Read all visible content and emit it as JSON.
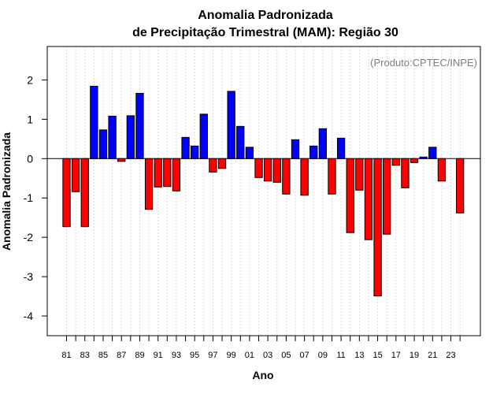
{
  "chart_data": {
    "type": "bar",
    "title": "Anomalia Padronizada",
    "subtitle": "de Precipitação Trimestral (MAM): Região 30",
    "xlabel": "Ano",
    "ylabel": "Anomalia Padronizada",
    "annotation": "(Produto:CPTEC/INPE)",
    "ylim": [
      -4.5,
      2.85
    ],
    "yticks": [
      -4,
      -3,
      -2,
      -1,
      0,
      1,
      2
    ],
    "ytick_labels": [
      "-4",
      "-3",
      "-2",
      "-1",
      "0",
      "1",
      "2"
    ],
    "grid": true,
    "positive_color": "#0000ff",
    "negative_color": "#ff0000",
    "x_tick_labels": [
      "81",
      "83",
      "85",
      "87",
      "89",
      "91",
      "93",
      "95",
      "97",
      "99",
      "01",
      "03",
      "05",
      "07",
      "09",
      "11",
      "13",
      "15",
      "17",
      "19",
      "21",
      "23"
    ],
    "categories": [
      "1981",
      "1982",
      "1983",
      "1984",
      "1985",
      "1986",
      "1987",
      "1988",
      "1989",
      "1990",
      "1991",
      "1992",
      "1993",
      "1994",
      "1995",
      "1996",
      "1997",
      "1998",
      "1999",
      "2000",
      "2001",
      "2002",
      "2003",
      "2004",
      "2005",
      "2006",
      "2007",
      "2008",
      "2009",
      "2010",
      "2011",
      "2012",
      "2013",
      "2014",
      "2015",
      "2016",
      "2017",
      "2018",
      "2019",
      "2020",
      "2021",
      "2022",
      "2023",
      "2024"
    ],
    "values": [
      -1.73,
      -0.84,
      -1.73,
      1.84,
      0.73,
      1.08,
      -0.07,
      1.09,
      1.66,
      -1.29,
      -0.72,
      -0.71,
      -0.82,
      0.54,
      0.32,
      1.13,
      -0.34,
      -0.25,
      1.71,
      0.82,
      0.29,
      -0.48,
      -0.57,
      -0.6,
      -0.9,
      0.48,
      -0.93,
      0.32,
      0.76,
      -0.9,
      0.52,
      -1.88,
      -0.8,
      -2.06,
      -3.49,
      -1.92,
      -0.17,
      -0.74,
      -0.1,
      0.04,
      0.29,
      -0.57,
      0.0,
      -1.38
    ]
  }
}
